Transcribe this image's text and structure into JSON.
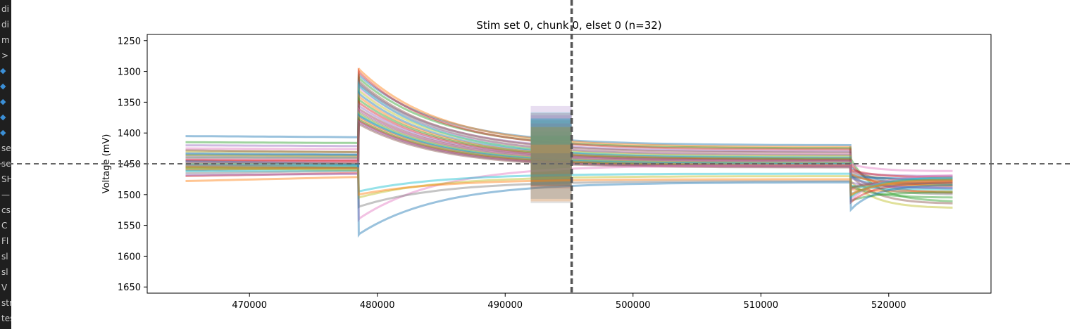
{
  "sidebar": {
    "items": [
      {
        "label": "di"
      },
      {
        "label": "di"
      },
      {
        "label": "m"
      },
      {
        "label": ">"
      },
      {
        "icon": "python-file-icon"
      },
      {
        "icon": "python-file-icon"
      },
      {
        "icon": "python-file-icon"
      },
      {
        "icon": "python-file-icon"
      },
      {
        "icon": "python-file-icon"
      },
      {
        "label": "se"
      },
      {
        "label": "se"
      },
      {
        "label": "SH"
      },
      {
        "label": "—"
      },
      {
        "label": "cs"
      },
      {
        "label": "C"
      },
      {
        "label": "Fl"
      },
      {
        "label": "sl"
      },
      {
        "label": "sl"
      },
      {
        "label": "V"
      },
      {
        "label": "str"
      },
      {
        "label": "tes"
      }
    ]
  },
  "chart_data": {
    "type": "line",
    "title": "Stim set 0, chunk 0, elset 0 (n=32)",
    "ylabel": "Voltage (mV)",
    "xlabel": "",
    "xlim": [
      462000,
      528000
    ],
    "ylim": [
      1660,
      1240
    ],
    "y_inverted": true,
    "x_ticks": [
      470000,
      480000,
      490000,
      500000,
      510000,
      520000
    ],
    "x_tick_labels": [
      "470000",
      "480000",
      "490000",
      "500000",
      "510000",
      "520000"
    ],
    "y_ticks": [
      1250,
      1300,
      1350,
      1400,
      1450,
      1500,
      1550,
      1600,
      1650
    ],
    "y_tick_labels": [
      "1250",
      "1300",
      "1350",
      "1400",
      "1450",
      "1500",
      "1550",
      "1600",
      "1650"
    ],
    "grid": false,
    "legend": "none",
    "trace_count": 32,
    "x_start": 465000,
    "x_end": 525000,
    "stim_onset": 478500,
    "stim_offset": 517000,
    "noise_band": [
      492000,
      495200
    ],
    "reference_line_y": 1450,
    "reference_line_x": 495200,
    "palette": [
      "#1f77b4",
      "#ff7f0e",
      "#2ca02c",
      "#d62728",
      "#9467bd",
      "#8c564b",
      "#e377c2",
      "#7f7f7f",
      "#bcbd22",
      "#17becf"
    ],
    "series": [
      {
        "start": 1405,
        "peak": 1305,
        "mid": 1420,
        "end": 1485
      },
      {
        "start": 1478,
        "peak": 1295,
        "mid": 1423,
        "end": 1478
      },
      {
        "start": 1415,
        "peak": 1310,
        "mid": 1425,
        "end": 1512
      },
      {
        "start": 1470,
        "peak": 1300,
        "mid": 1427,
        "end": 1498
      },
      {
        "start": 1420,
        "peak": 1320,
        "mid": 1430,
        "end": 1470
      },
      {
        "start": 1460,
        "peak": 1315,
        "mid": 1432,
        "end": 1515
      },
      {
        "start": 1425,
        "peak": 1325,
        "mid": 1435,
        "end": 1462
      },
      {
        "start": 1465,
        "peak": 1318,
        "mid": 1436,
        "end": 1480
      },
      {
        "start": 1430,
        "peak": 1330,
        "mid": 1438,
        "end": 1522
      },
      {
        "start": 1455,
        "peak": 1322,
        "mid": 1440,
        "end": 1490
      },
      {
        "start": 1435,
        "peak": 1335,
        "mid": 1441,
        "end": 1476
      },
      {
        "start": 1450,
        "peak": 1340,
        "mid": 1442,
        "end": 1495
      },
      {
        "start": 1440,
        "peak": 1345,
        "mid": 1443,
        "end": 1505
      },
      {
        "start": 1445,
        "peak": 1350,
        "mid": 1444,
        "end": 1472
      },
      {
        "start": 1438,
        "peak": 1355,
        "mid": 1445,
        "end": 1488
      },
      {
        "start": 1452,
        "peak": 1360,
        "mid": 1446,
        "end": 1482
      },
      {
        "start": 1442,
        "peak": 1362,
        "mid": 1447,
        "end": 1478
      },
      {
        "start": 1458,
        "peak": 1365,
        "mid": 1448,
        "end": 1500
      },
      {
        "start": 1436,
        "peak": 1368,
        "mid": 1449,
        "end": 1484
      },
      {
        "start": 1462,
        "peak": 1370,
        "mid": 1450,
        "end": 1492
      },
      {
        "start": 1433,
        "peak": 1372,
        "mid": 1451,
        "end": 1474
      },
      {
        "start": 1448,
        "peak": 1375,
        "mid": 1452,
        "end": 1486
      },
      {
        "start": 1456,
        "peak": 1378,
        "mid": 1453,
        "end": 1496
      },
      {
        "start": 1444,
        "peak": 1380,
        "mid": 1454,
        "end": 1480
      },
      {
        "start": 1468,
        "peak": 1382,
        "mid": 1455,
        "end": 1490
      },
      {
        "start": 1428,
        "peak": 1385,
        "mid": 1456,
        "end": 1476
      },
      {
        "start": 1447,
        "peak": 1540,
        "mid": 1452,
        "end": 1468
      },
      {
        "start": 1453,
        "peak": 1520,
        "mid": 1478,
        "end": 1480
      },
      {
        "start": 1458,
        "peak": 1505,
        "mid": 1470,
        "end": 1475
      },
      {
        "start": 1450,
        "peak": 1495,
        "mid": 1466,
        "end": 1472
      },
      {
        "start": 1446,
        "peak": 1565,
        "mid": 1480,
        "end": 1484
      },
      {
        "start": 1455,
        "peak": 1500,
        "mid": 1475,
        "end": 1478
      }
    ]
  }
}
